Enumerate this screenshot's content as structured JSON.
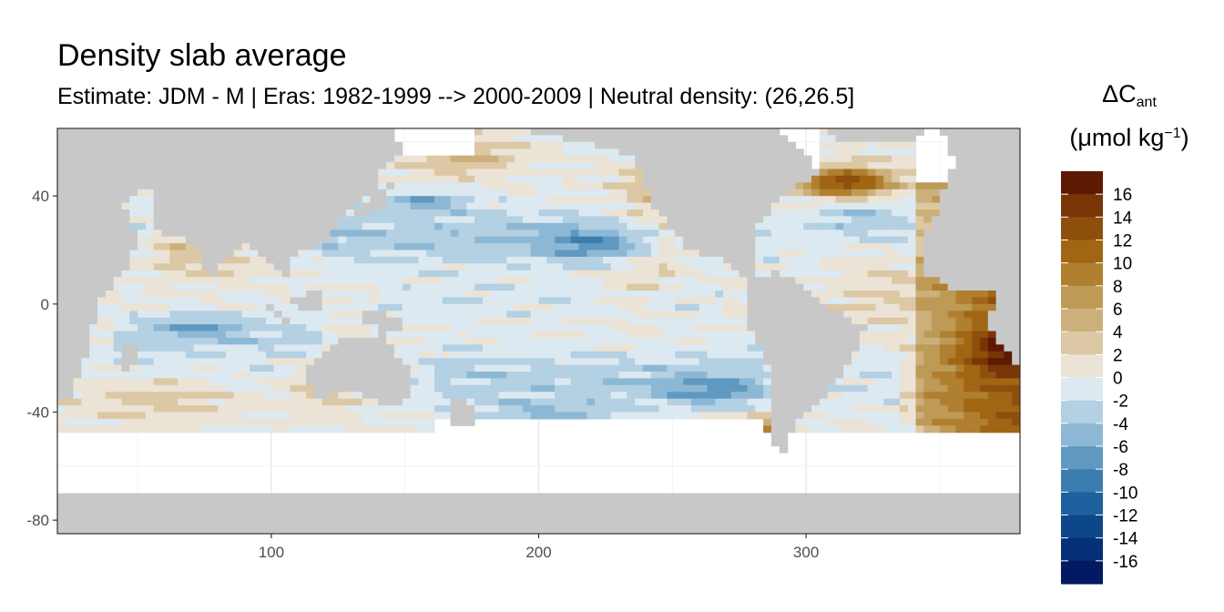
{
  "chart_data": {
    "type": "heatmap",
    "title": "Density slab average",
    "subtitle": "Estimate: JDM - M | Eras: 1982-1999 --> 2000-2009 | Neutral density: (26,26.5]",
    "legend_title_main": "ΔC",
    "legend_title_sub": "ant",
    "legend_unit_prefix": "(μmol kg",
    "legend_unit_sup": "−1",
    "legend_unit_suffix": ")",
    "xlim": [
      20,
      380
    ],
    "ylim": [
      -85,
      65
    ],
    "x_ticks": [
      100,
      200,
      300
    ],
    "y_ticks": [
      40,
      0,
      -40,
      -80
    ],
    "grid": true,
    "legend_position": "right",
    "land_color": "#c8c8c8",
    "no_data_color": "#ffffff",
    "color_scale": {
      "breaks": [
        16,
        14,
        12,
        10,
        8,
        6,
        4,
        2,
        0,
        -2,
        -4,
        -6,
        -8,
        -10,
        -12,
        -14,
        -16
      ],
      "colors": [
        "#5c1a03",
        "#7a3507",
        "#8e4f0d",
        "#a06614",
        "#b07f30",
        "#be9a57",
        "#ccb07b",
        "#dcc8a4",
        "#ebe3d6",
        "#dde9f0",
        "#b4d0e3",
        "#8db8d5",
        "#5f99c1",
        "#3b7db0",
        "#1f619e",
        "#0c478a",
        "#052f76",
        "#011a62"
      ]
    }
  }
}
